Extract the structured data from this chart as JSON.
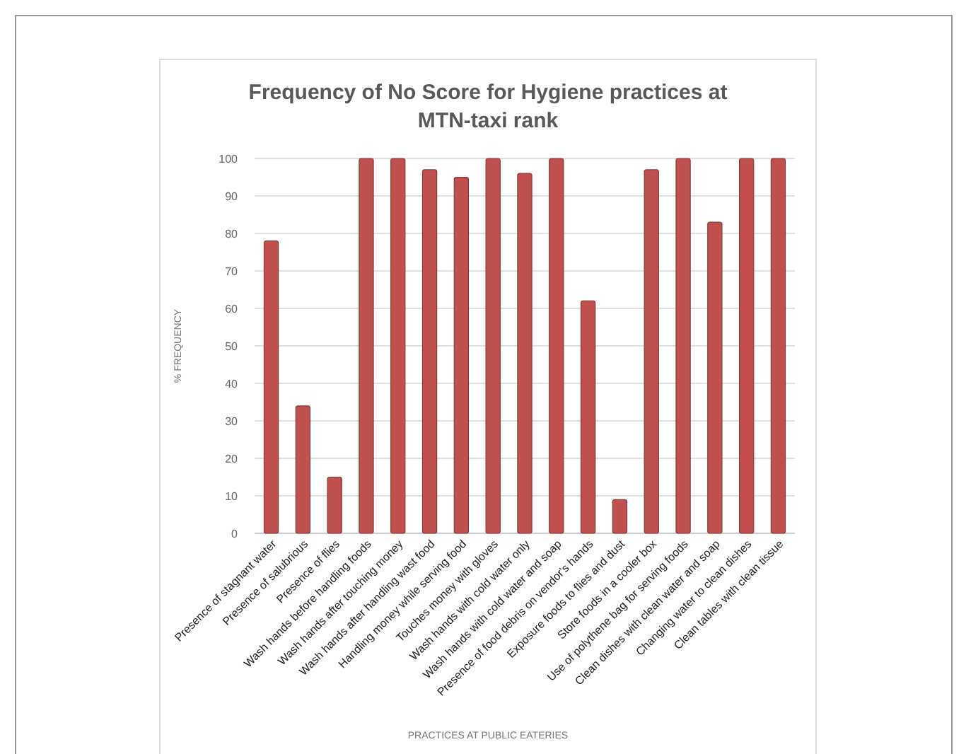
{
  "chart_data": {
    "type": "bar",
    "title": "Frequency of No Score for Hygiene practices  at MTN-taxi rank",
    "xlabel": "PRACTICES  AT PUBLIC  EATERIES",
    "ylabel": "% FREQUENCY",
    "categories": [
      "Presence of stagnant water",
      "Presence of salubrious",
      "Presence of flies",
      "Wash hands before handling foods",
      "Wash hands after touching money",
      "Wash hands after handling wast food",
      "Handling money while serving food",
      "Touches money with gloves",
      "Wash hands with cold water only",
      "Wash hands with cold water and soap",
      "Presence of food debris on vendor's hands",
      "Exposure foods to flies and dust",
      "Store foods in a cooler box",
      "Use of polythene bag for serving foods",
      "Clean dishes with clean water and soap",
      "Changing water to clean dishes",
      "Clean tables with clean tissue"
    ],
    "values": [
      78,
      34,
      15,
      100,
      100,
      97,
      95,
      100,
      96,
      100,
      62,
      9,
      97,
      100,
      83,
      100,
      100
    ],
    "color": "#c0504d",
    "ylim": [
      0,
      100
    ],
    "yticks": [
      0,
      10,
      20,
      30,
      40,
      50,
      60,
      70,
      80,
      90,
      100
    ],
    "grid": "y"
  }
}
